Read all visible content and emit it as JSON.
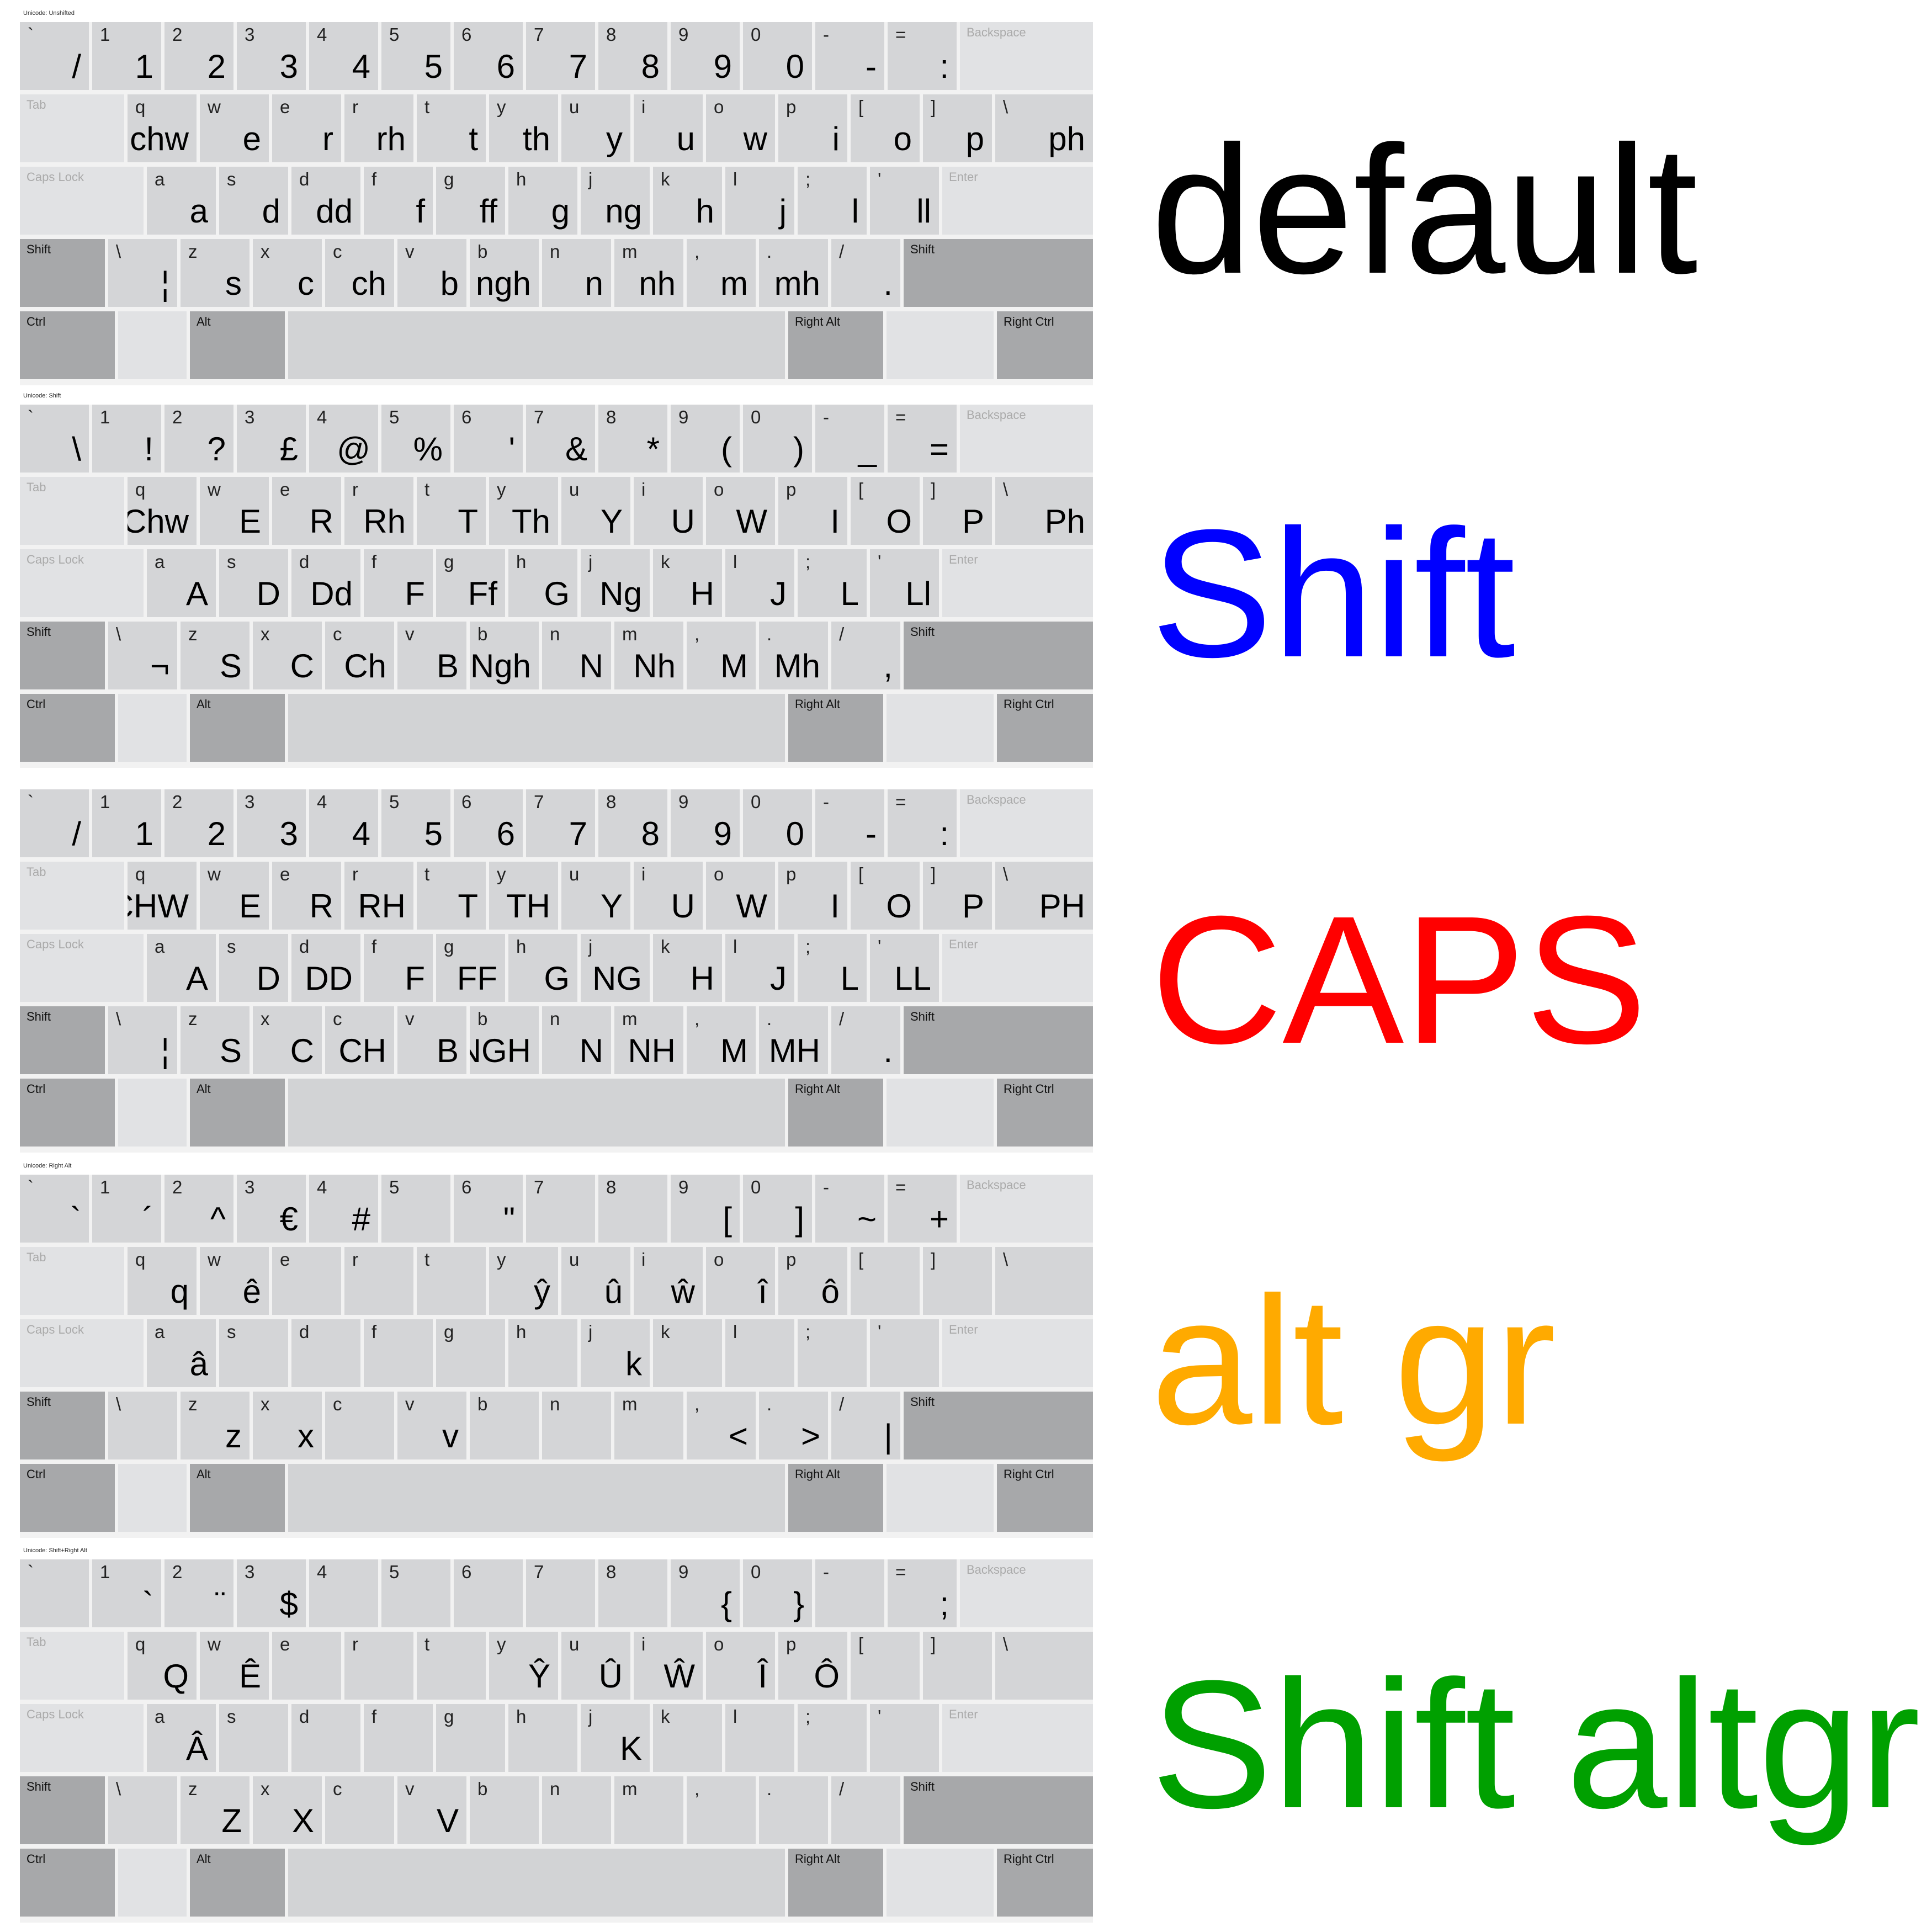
{
  "boards": [
    {
      "name": "default",
      "caption": "Unicode: Unshifted",
      "rows": [
        [
          [
            "`",
            "/"
          ],
          [
            "1",
            "1"
          ],
          [
            "2",
            "2"
          ],
          [
            "3",
            "3"
          ],
          [
            "4",
            "4"
          ],
          [
            "5",
            "5"
          ],
          [
            "6",
            "6"
          ],
          [
            "7",
            "7"
          ],
          [
            "8",
            "8"
          ],
          [
            "9",
            "9"
          ],
          [
            "0",
            "0"
          ],
          [
            "-",
            "-"
          ],
          [
            "=",
            ":"
          ]
        ],
        [
          [
            "q",
            "chw"
          ],
          [
            "w",
            "e"
          ],
          [
            "e",
            "r"
          ],
          [
            "r",
            "rh"
          ],
          [
            "t",
            "t"
          ],
          [
            "y",
            "th"
          ],
          [
            "u",
            "y"
          ],
          [
            "i",
            "u"
          ],
          [
            "o",
            "w"
          ],
          [
            "p",
            "i"
          ],
          [
            "[",
            "o"
          ],
          [
            "]",
            "p"
          ],
          [
            "\\",
            "ph"
          ]
        ],
        [
          [
            "a",
            "a"
          ],
          [
            "s",
            "d"
          ],
          [
            "d",
            "dd"
          ],
          [
            "f",
            "f"
          ],
          [
            "g",
            "ff"
          ],
          [
            "h",
            "g"
          ],
          [
            "j",
            "ng"
          ],
          [
            "k",
            "h"
          ],
          [
            "l",
            "j"
          ],
          [
            ";",
            "l"
          ],
          [
            "'",
            "ll"
          ]
        ],
        [
          [
            "\\",
            "¦"
          ],
          [
            "z",
            "s"
          ],
          [
            "x",
            "c"
          ],
          [
            "c",
            "ch"
          ],
          [
            "v",
            "b"
          ],
          [
            "b",
            "ngh"
          ],
          [
            "n",
            "n"
          ],
          [
            "m",
            "nh"
          ],
          [
            ",",
            "m"
          ],
          [
            ".",
            "mh"
          ],
          [
            "/",
            "."
          ]
        ]
      ]
    },
    {
      "name": "shift",
      "caption": "Unicode: Shift",
      "rows": [
        [
          [
            "`",
            "\\"
          ],
          [
            "1",
            "!"
          ],
          [
            "2",
            "?"
          ],
          [
            "3",
            "£"
          ],
          [
            "4",
            "@"
          ],
          [
            "5",
            "%"
          ],
          [
            "6",
            "'"
          ],
          [
            "7",
            "&"
          ],
          [
            "8",
            "*"
          ],
          [
            "9",
            "("
          ],
          [
            "0",
            ")"
          ],
          [
            "-",
            "_"
          ],
          [
            "=",
            "="
          ]
        ],
        [
          [
            "q",
            "Chw"
          ],
          [
            "w",
            "E"
          ],
          [
            "e",
            "R"
          ],
          [
            "r",
            "Rh"
          ],
          [
            "t",
            "T"
          ],
          [
            "y",
            "Th"
          ],
          [
            "u",
            "Y"
          ],
          [
            "i",
            "U"
          ],
          [
            "o",
            "W"
          ],
          [
            "p",
            "I"
          ],
          [
            "[",
            "O"
          ],
          [
            "]",
            "P"
          ],
          [
            "\\",
            "Ph"
          ]
        ],
        [
          [
            "a",
            "A"
          ],
          [
            "s",
            "D"
          ],
          [
            "d",
            "Dd"
          ],
          [
            "f",
            "F"
          ],
          [
            "g",
            "Ff"
          ],
          [
            "h",
            "G"
          ],
          [
            "j",
            "Ng"
          ],
          [
            "k",
            "H"
          ],
          [
            "l",
            "J"
          ],
          [
            ";",
            "L"
          ],
          [
            "'",
            "Ll"
          ]
        ],
        [
          [
            "\\",
            "¬"
          ],
          [
            "z",
            "S"
          ],
          [
            "x",
            "C"
          ],
          [
            "c",
            "Ch"
          ],
          [
            "v",
            "B"
          ],
          [
            "b",
            "Ngh"
          ],
          [
            "n",
            "N"
          ],
          [
            "m",
            "Nh"
          ],
          [
            ",",
            "M"
          ],
          [
            ".",
            "Mh"
          ],
          [
            "/",
            ","
          ]
        ]
      ]
    },
    {
      "name": "caps",
      "caption": "",
      "rows": [
        [
          [
            "`",
            "/"
          ],
          [
            "1",
            "1"
          ],
          [
            "2",
            "2"
          ],
          [
            "3",
            "3"
          ],
          [
            "4",
            "4"
          ],
          [
            "5",
            "5"
          ],
          [
            "6",
            "6"
          ],
          [
            "7",
            "7"
          ],
          [
            "8",
            "8"
          ],
          [
            "9",
            "9"
          ],
          [
            "0",
            "0"
          ],
          [
            "-",
            "-"
          ],
          [
            "=",
            ":"
          ]
        ],
        [
          [
            "q",
            "CHW"
          ],
          [
            "w",
            "E"
          ],
          [
            "e",
            "R"
          ],
          [
            "r",
            "RH"
          ],
          [
            "t",
            "T"
          ],
          [
            "y",
            "TH"
          ],
          [
            "u",
            "Y"
          ],
          [
            "i",
            "U"
          ],
          [
            "o",
            "W"
          ],
          [
            "p",
            "I"
          ],
          [
            "[",
            "O"
          ],
          [
            "]",
            "P"
          ],
          [
            "\\",
            "PH"
          ]
        ],
        [
          [
            "a",
            "A"
          ],
          [
            "s",
            "D"
          ],
          [
            "d",
            "DD"
          ],
          [
            "f",
            "F"
          ],
          [
            "g",
            "FF"
          ],
          [
            "h",
            "G"
          ],
          [
            "j",
            "NG"
          ],
          [
            "k",
            "H"
          ],
          [
            "l",
            "J"
          ],
          [
            ";",
            "L"
          ],
          [
            "'",
            "LL"
          ]
        ],
        [
          [
            "\\",
            "¦"
          ],
          [
            "z",
            "S"
          ],
          [
            "x",
            "C"
          ],
          [
            "c",
            "CH"
          ],
          [
            "v",
            "B"
          ],
          [
            "b",
            "NGH"
          ],
          [
            "n",
            "N"
          ],
          [
            "m",
            "NH"
          ],
          [
            ",",
            "M"
          ],
          [
            ".",
            "MH"
          ],
          [
            "/",
            "."
          ]
        ]
      ]
    },
    {
      "name": "altgr",
      "caption": "Unicode: Right Alt",
      "rows": [
        [
          [
            "`",
            "`"
          ],
          [
            "1",
            "´"
          ],
          [
            "2",
            "^"
          ],
          [
            "3",
            "€"
          ],
          [
            "4",
            "#"
          ],
          [
            "5",
            ""
          ],
          [
            "6",
            "\""
          ],
          [
            "7",
            ""
          ],
          [
            "8",
            ""
          ],
          [
            "9",
            "["
          ],
          [
            "0",
            "]"
          ],
          [
            "-",
            "~"
          ],
          [
            "=",
            "+"
          ]
        ],
        [
          [
            "q",
            "q"
          ],
          [
            "w",
            "ê"
          ],
          [
            "e",
            ""
          ],
          [
            "r",
            ""
          ],
          [
            "t",
            ""
          ],
          [
            "y",
            "ŷ"
          ],
          [
            "u",
            "û"
          ],
          [
            "i",
            "ŵ"
          ],
          [
            "o",
            "î"
          ],
          [
            "p",
            "ô"
          ],
          [
            "[",
            ""
          ],
          [
            "]",
            ""
          ],
          [
            "\\",
            ""
          ]
        ],
        [
          [
            "a",
            "â"
          ],
          [
            "s",
            ""
          ],
          [
            "d",
            ""
          ],
          [
            "f",
            ""
          ],
          [
            "g",
            ""
          ],
          [
            "h",
            ""
          ],
          [
            "j",
            "k"
          ],
          [
            "k",
            ""
          ],
          [
            "l",
            ""
          ],
          [
            ";",
            ""
          ],
          [
            "'",
            ""
          ]
        ],
        [
          [
            "\\",
            ""
          ],
          [
            "z",
            "z"
          ],
          [
            "x",
            "x"
          ],
          [
            "c",
            ""
          ],
          [
            "v",
            "v"
          ],
          [
            "b",
            ""
          ],
          [
            "n",
            ""
          ],
          [
            "m",
            ""
          ],
          [
            ",",
            "<"
          ],
          [
            ".",
            ">"
          ],
          [
            "/",
            "|"
          ]
        ]
      ]
    },
    {
      "name": "shift-altgr",
      "caption": "Unicode: Shift+Right Alt",
      "rows": [
        [
          [
            "`",
            ""
          ],
          [
            "1",
            "`"
          ],
          [
            "2",
            "¨"
          ],
          [
            "3",
            "$"
          ],
          [
            "4",
            ""
          ],
          [
            "5",
            ""
          ],
          [
            "6",
            ""
          ],
          [
            "7",
            ""
          ],
          [
            "8",
            ""
          ],
          [
            "9",
            "{"
          ],
          [
            "0",
            "}"
          ],
          [
            "-",
            ""
          ],
          [
            "=",
            ";"
          ]
        ],
        [
          [
            "q",
            "Q"
          ],
          [
            "w",
            "Ê"
          ],
          [
            "e",
            ""
          ],
          [
            "r",
            ""
          ],
          [
            "t",
            ""
          ],
          [
            "y",
            "Ŷ"
          ],
          [
            "u",
            "Û"
          ],
          [
            "i",
            "Ŵ"
          ],
          [
            "o",
            "Î"
          ],
          [
            "p",
            "Ô"
          ],
          [
            "[",
            ""
          ],
          [
            "]",
            ""
          ],
          [
            "\\",
            ""
          ]
        ],
        [
          [
            "a",
            "Â"
          ],
          [
            "s",
            ""
          ],
          [
            "d",
            ""
          ],
          [
            "f",
            ""
          ],
          [
            "g",
            ""
          ],
          [
            "h",
            ""
          ],
          [
            "j",
            "K"
          ],
          [
            "k",
            ""
          ],
          [
            "l",
            ""
          ],
          [
            ";",
            ""
          ],
          [
            "'",
            ""
          ]
        ],
        [
          [
            "\\",
            ""
          ],
          [
            "z",
            "Z"
          ],
          [
            "x",
            "X"
          ],
          [
            "c",
            ""
          ],
          [
            "v",
            "V"
          ],
          [
            "b",
            ""
          ],
          [
            "n",
            ""
          ],
          [
            "m",
            ""
          ],
          [
            ",",
            ""
          ],
          [
            ".",
            ""
          ],
          [
            "/",
            ""
          ]
        ]
      ]
    }
  ],
  "special_keys": {
    "backspace": "Backspace",
    "tab": "Tab",
    "caps_lock": "Caps Lock",
    "enter": "Enter",
    "shift": "Shift",
    "right_shift": "Shift",
    "ctrl": "Ctrl",
    "alt": "Alt",
    "right_alt": "Right Alt",
    "right_ctrl": "Right Ctrl"
  },
  "labels": [
    {
      "text": "default",
      "color": "#000000"
    },
    {
      "text": "Shift",
      "color": "#0000ff"
    },
    {
      "text": "CAPS",
      "color": "#ff0000"
    },
    {
      "text": "alt gr",
      "color": "#ffaa00"
    },
    {
      "text": "Shift altgr",
      "color": "#00a000"
    }
  ]
}
